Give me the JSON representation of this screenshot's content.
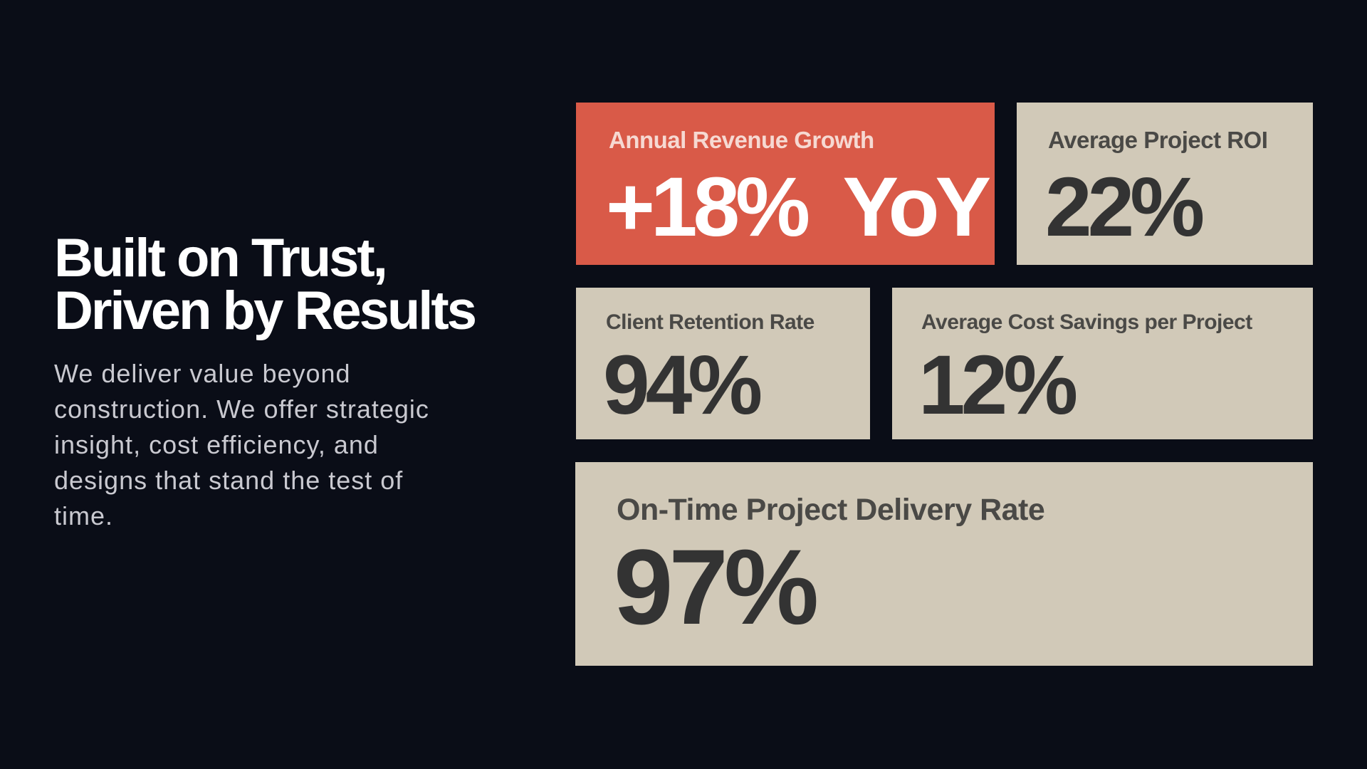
{
  "heading": {
    "lines": [
      "Built on Trust,",
      "Driven by Results"
    ],
    "description": "We deliver value beyond construction. We offer strategic insight, cost efficiency, and designs that stand the test of time."
  },
  "cards": [
    {
      "label": "Annual Revenue Growth",
      "value": "+18%  YoY"
    },
    {
      "label": "Average Project ROI",
      "value": "22%"
    },
    {
      "label": "Client Retention Rate",
      "value": "94%"
    },
    {
      "label": "Average Cost Savings per Project",
      "value": "12%"
    },
    {
      "label": "On-Time Project Delivery Rate",
      "value": "97%"
    }
  ]
}
